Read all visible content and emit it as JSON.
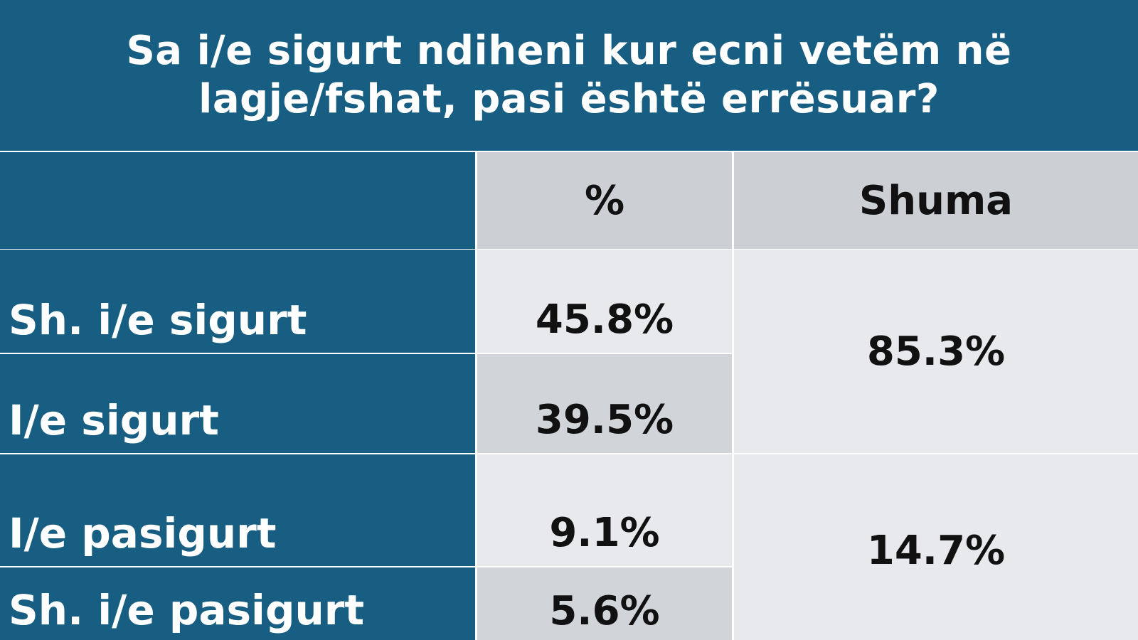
{
  "title_lines": [
    "Sa i/e sigurt ndiheni kur ecni vetëm në",
    "lagje/fshat, pasi është errësuar?"
  ],
  "header": {
    "col1": "",
    "col2": "%",
    "col3": "Shuma"
  },
  "rows": [
    {
      "label": "Sh. i/e sigurt",
      "pct": "45.8%"
    },
    {
      "label": "I/e sigurt",
      "pct": "39.5%"
    },
    {
      "label": "I/e pasigurt",
      "pct": "9.1%"
    },
    {
      "label": "Sh. i/e pasigurt",
      "pct": "5.6%"
    }
  ],
  "sums": [
    "85.3%",
    "14.7%"
  ],
  "colors": {
    "header_blue": "#175e82",
    "header_gray": "#ccd0d5",
    "cell_light": "#e7e9ec",
    "cell_mid": "#d1d5da"
  },
  "chart_data": {
    "type": "table",
    "title": "Sa i/e sigurt ndiheni kur ecni vetëm në lagje/fshat, pasi është errësuar?",
    "columns": [
      "",
      "%",
      "Shuma"
    ],
    "categories": [
      "Sh. i/e sigurt",
      "I/e sigurt",
      "I/e pasigurt",
      "Sh. i/e pasigurt"
    ],
    "values": [
      45.8,
      39.5,
      9.1,
      5.6
    ],
    "groups": [
      {
        "rows": [
          "Sh. i/e sigurt",
          "I/e sigurt"
        ],
        "sum": 85.3
      },
      {
        "rows": [
          "I/e pasigurt",
          "Sh. i/e pasigurt"
        ],
        "sum": 14.7
      }
    ]
  }
}
